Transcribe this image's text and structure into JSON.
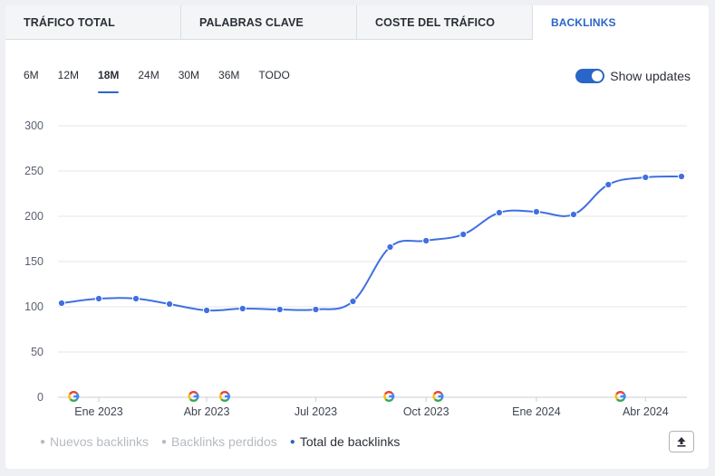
{
  "tabs": [
    {
      "label": "TRÁFICO TOTAL",
      "active": false
    },
    {
      "label": "PALABRAS CLAVE",
      "active": false
    },
    {
      "label": "COSTE DEL TRÁFICO",
      "active": false
    },
    {
      "label": "BACKLINKS",
      "active": true
    }
  ],
  "periods": [
    {
      "label": "6M",
      "selected": false
    },
    {
      "label": "12M",
      "selected": false
    },
    {
      "label": "18M",
      "selected": true
    },
    {
      "label": "24M",
      "selected": false
    },
    {
      "label": "30M",
      "selected": false
    },
    {
      "label": "36M",
      "selected": false
    },
    {
      "label": "TODO",
      "selected": false
    }
  ],
  "toggle": {
    "label": "Show updates",
    "on": true
  },
  "legend": [
    {
      "label": "Nuevos backlinks",
      "active": false
    },
    {
      "label": "Backlinks perdidos",
      "active": false
    },
    {
      "label": "Total de backlinks",
      "active": true
    }
  ],
  "export_icon": "upload-icon",
  "colors": {
    "accent": "#2a66c8",
    "line": "#3f6fe0",
    "grid": "#e3e6eb",
    "inactive": "#b6bac2"
  },
  "chart_data": {
    "type": "line",
    "ylim": [
      0,
      300
    ],
    "yticks": [
      0,
      50,
      100,
      150,
      200,
      250,
      300
    ],
    "x": [
      "2022-12-01",
      "2023-01-01",
      "2023-02-01",
      "2023-03-01",
      "2023-04-01",
      "2023-05-01",
      "2023-06-01",
      "2023-07-01",
      "2023-08-01",
      "2023-09-01",
      "2023-10-01",
      "2023-11-01",
      "2023-12-01",
      "2024-01-01",
      "2024-02-01",
      "2024-03-01",
      "2024-04-01",
      "2024-05-01"
    ],
    "x_tick_labels": [
      {
        "label": "Ene 2023",
        "date": "2023-01-01"
      },
      {
        "label": "Abr 2023",
        "date": "2023-04-01"
      },
      {
        "label": "Jul 2023",
        "date": "2023-07-01"
      },
      {
        "label": "Oct 2023",
        "date": "2023-10-01"
      },
      {
        "label": "Ene 2024",
        "date": "2024-01-01"
      },
      {
        "label": "Abr 2024",
        "date": "2024-04-01"
      }
    ],
    "series": [
      {
        "name": "Total de backlinks",
        "values": [
          104,
          109,
          109,
          103,
          96,
          98,
          97,
          97,
          106,
          166,
          173,
          180,
          204,
          205,
          202,
          235,
          243,
          244
        ]
      }
    ],
    "google_update_dates": [
      "2022-12-05",
      "2023-03-15",
      "2023-04-10",
      "2023-08-25",
      "2023-10-05",
      "2024-03-05"
    ],
    "grid": true
  }
}
